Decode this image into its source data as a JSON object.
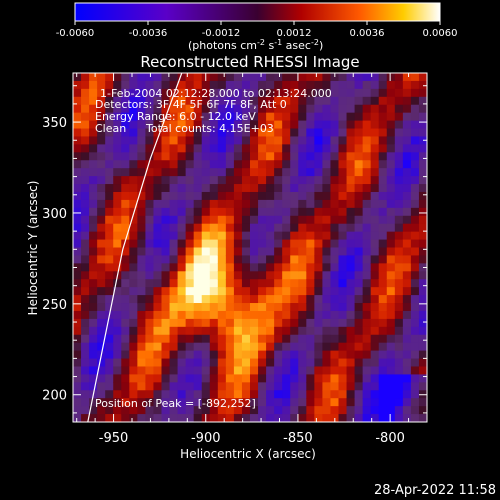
{
  "colorbar": {
    "ticks": [
      "-0.0060",
      "-0.0036",
      "-0.0012",
      "0.0012",
      "0.0036",
      "0.0060"
    ],
    "units_main": "(photons cm",
    "units_sup1": "-2",
    "units_mid1": " s",
    "units_sup2": "-1",
    "units_mid2": " asec",
    "units_sup3": "-2",
    "units_end": ")"
  },
  "title": "Reconstructed RHESSI Image",
  "info": {
    "line1": "1-Feb-2004 02:12:28.000 to 02:13:24.000",
    "line2": "Detectors: 3F 4F 5F 6F 7F 8F, Att 0",
    "line3": "Energy Range: 6.0 - 12.0 keV",
    "line4_left": "Clean",
    "line4_right": "Total counts: 4.15E+03",
    "peak": "Position of Peak = [-892,252]"
  },
  "footer_timestamp": "28-Apr-2022 11:58",
  "chart_data": {
    "type": "heatmap",
    "title": "Reconstructed RHESSI Image",
    "xlabel": "Heliocentric X (arcsec)",
    "ylabel": "Heliocentric Y (arcsec)",
    "xlim": [
      -972,
      -780
    ],
    "ylim": [
      185,
      377
    ],
    "x_ticks": [
      -950,
      -900,
      -850,
      -800
    ],
    "y_ticks": [
      200,
      250,
      300,
      350
    ],
    "colorbar_range": [
      -0.006,
      0.006
    ],
    "peak": [
      -892,
      252
    ],
    "limb_curve": [
      [
        -964,
        185
      ],
      [
        -955,
        230
      ],
      [
        -945,
        280
      ],
      [
        -930,
        330
      ],
      [
        -913,
        377
      ]
    ],
    "colors": {
      "low": "#1a00ff",
      "mid": "#5a1a4a",
      "high": "#ffffff"
    }
  }
}
